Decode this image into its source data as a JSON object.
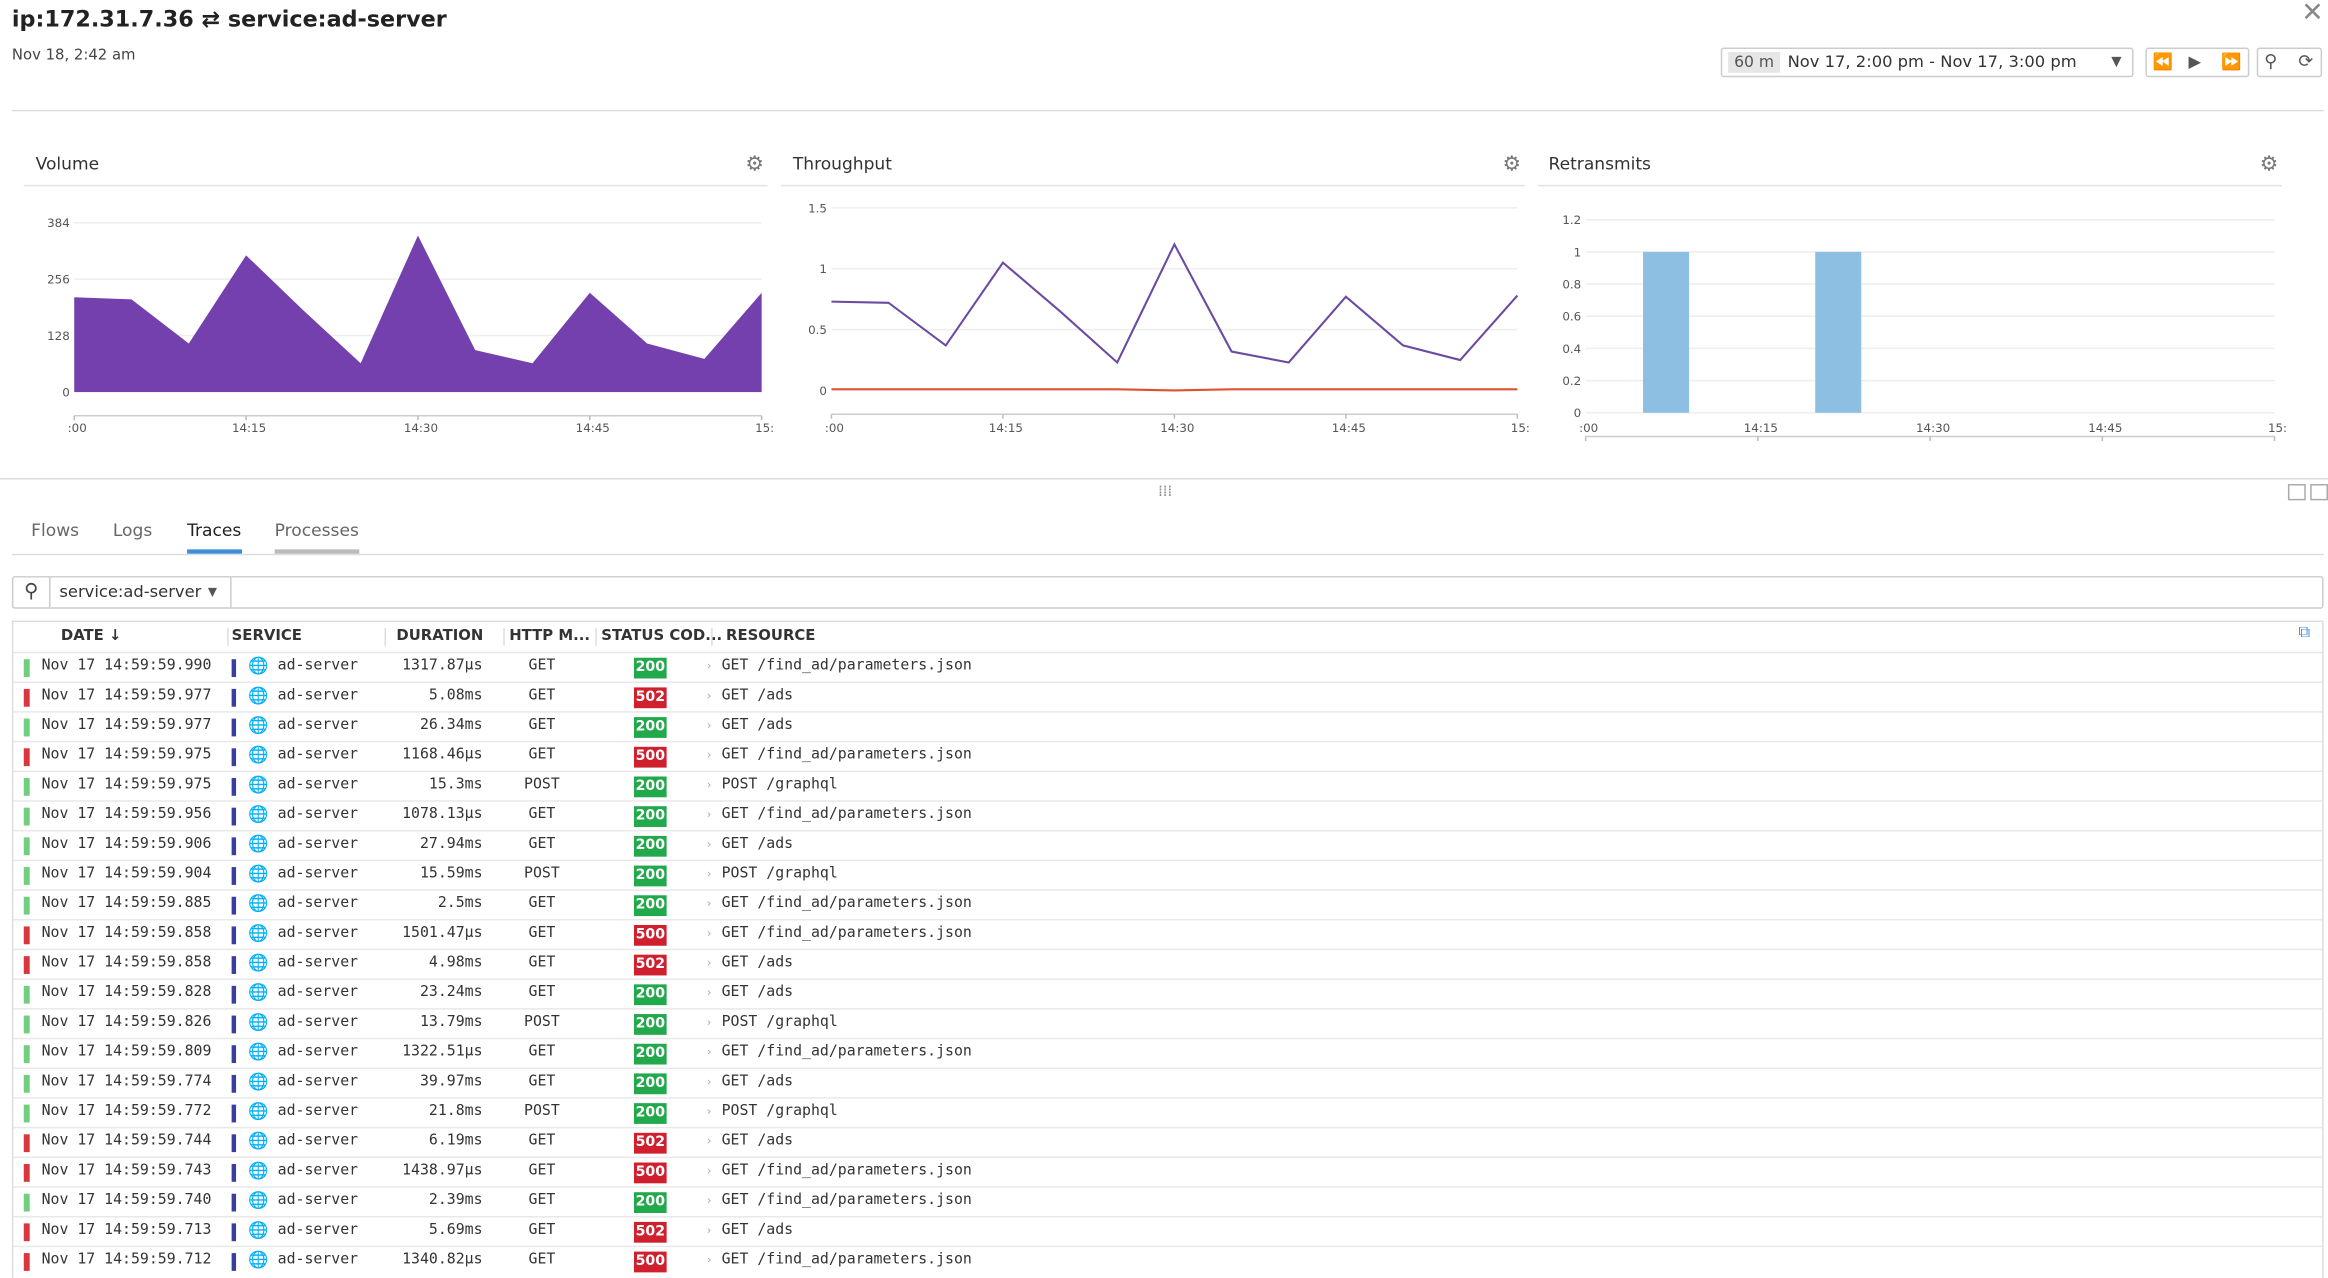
{
  "header": {
    "title": "ip:172.31.7.36 ⇄ service:ad-server",
    "timestamp": "Nov 18, 2:42 am"
  },
  "time_controls": {
    "duration": "60 m",
    "range": "Nov 17, 2:00 pm - Nov 17, 3:00 pm"
  },
  "chart_data": [
    {
      "type": "area",
      "title": "Volume",
      "color": "#7440ad",
      "x": [
        0,
        5,
        10,
        15,
        20,
        25,
        30,
        35,
        40,
        45,
        50,
        55,
        60
      ],
      "values": [
        215,
        210,
        110,
        310,
        185,
        65,
        355,
        95,
        65,
        225,
        110,
        75,
        225
      ],
      "xlim": [
        0,
        60
      ],
      "xticks": [
        {
          "value": 0,
          "label": ":00"
        },
        {
          "value": 15,
          "label": "14:15"
        },
        {
          "value": 30,
          "label": "14:30"
        },
        {
          "value": 45,
          "label": "14:45"
        },
        {
          "value": 60,
          "label": "15:"
        }
      ],
      "ylim": [
        0,
        384
      ],
      "yticks": [
        0,
        128,
        256,
        384
      ],
      "grid": true
    },
    {
      "type": "line",
      "title": "Throughput",
      "x": [
        0,
        5,
        10,
        15,
        20,
        25,
        30,
        35,
        40,
        45,
        50,
        55,
        60
      ],
      "series": [
        {
          "color": "#6b4aa0",
          "values": [
            0.73,
            0.72,
            0.37,
            1.05,
            0.65,
            0.23,
            1.2,
            0.32,
            0.23,
            0.77,
            0.37,
            0.25,
            0.78
          ]
        },
        {
          "color": "#e0502a",
          "values": [
            0.01,
            0.01,
            0.01,
            0.01,
            0.01,
            0.01,
            0.0,
            0.01,
            0.01,
            0.01,
            0.01,
            0.01,
            0.01
          ]
        }
      ],
      "xlim": [
        0,
        60
      ],
      "xticks": [
        {
          "value": 0,
          "label": ":00"
        },
        {
          "value": 15,
          "label": "14:15"
        },
        {
          "value": 30,
          "label": "14:30"
        },
        {
          "value": 45,
          "label": "14:45"
        },
        {
          "value": 60,
          "label": "15:"
        }
      ],
      "ylim": [
        0,
        1.5
      ],
      "yticks": [
        0,
        0.5,
        1,
        1.5
      ],
      "grid": true
    },
    {
      "type": "bar",
      "title": "Retransmits",
      "color": "#8cbfe2",
      "x": [
        7,
        22
      ],
      "values": [
        1,
        1
      ],
      "xlim": [
        0,
        60
      ],
      "xticks": [
        {
          "value": 0,
          "label": ":00"
        },
        {
          "value": 15,
          "label": "14:15"
        },
        {
          "value": 30,
          "label": "14:30"
        },
        {
          "value": 45,
          "label": "14:45"
        },
        {
          "value": 60,
          "label": "15:"
        }
      ],
      "ylim": [
        0,
        1.2
      ],
      "yticks": [
        0,
        0.2,
        0.4,
        0.6,
        0.8,
        1,
        1.2
      ],
      "grid": true
    }
  ],
  "tabs": [
    "Flows",
    "Logs",
    "Traces",
    "Processes"
  ],
  "active_tab": 2,
  "search": {
    "query": "service:ad-server"
  },
  "table": {
    "columns": [
      "DATE ↓",
      "SERVICE",
      "DURATION",
      "HTTP M...",
      "STATUS COD...",
      "RESOURCE"
    ],
    "rows": [
      [
        "Nov 17 14:59:59.990",
        "ad-server",
        "1317.87µs",
        "GET",
        200,
        "GET /find_ad/parameters.json"
      ],
      [
        "Nov 17 14:59:59.977",
        "ad-server",
        "5.08ms",
        "GET",
        502,
        "GET /ads"
      ],
      [
        "Nov 17 14:59:59.977",
        "ad-server",
        "26.34ms",
        "GET",
        200,
        "GET /ads"
      ],
      [
        "Nov 17 14:59:59.975",
        "ad-server",
        "1168.46µs",
        "GET",
        500,
        "GET /find_ad/parameters.json"
      ],
      [
        "Nov 17 14:59:59.975",
        "ad-server",
        "15.3ms",
        "POST",
        200,
        "POST /graphql"
      ],
      [
        "Nov 17 14:59:59.956",
        "ad-server",
        "1078.13µs",
        "GET",
        200,
        "GET /find_ad/parameters.json"
      ],
      [
        "Nov 17 14:59:59.906",
        "ad-server",
        "27.94ms",
        "GET",
        200,
        "GET /ads"
      ],
      [
        "Nov 17 14:59:59.904",
        "ad-server",
        "15.59ms",
        "POST",
        200,
        "POST /graphql"
      ],
      [
        "Nov 17 14:59:59.885",
        "ad-server",
        "2.5ms",
        "GET",
        200,
        "GET /find_ad/parameters.json"
      ],
      [
        "Nov 17 14:59:59.858",
        "ad-server",
        "1501.47µs",
        "GET",
        500,
        "GET /find_ad/parameters.json"
      ],
      [
        "Nov 17 14:59:59.858",
        "ad-server",
        "4.98ms",
        "GET",
        502,
        "GET /ads"
      ],
      [
        "Nov 17 14:59:59.828",
        "ad-server",
        "23.24ms",
        "GET",
        200,
        "GET /ads"
      ],
      [
        "Nov 17 14:59:59.826",
        "ad-server",
        "13.79ms",
        "POST",
        200,
        "POST /graphql"
      ],
      [
        "Nov 17 14:59:59.809",
        "ad-server",
        "1322.51µs",
        "GET",
        200,
        "GET /find_ad/parameters.json"
      ],
      [
        "Nov 17 14:59:59.774",
        "ad-server",
        "39.97ms",
        "GET",
        200,
        "GET /ads"
      ],
      [
        "Nov 17 14:59:59.772",
        "ad-server",
        "21.8ms",
        "POST",
        200,
        "POST /graphql"
      ],
      [
        "Nov 17 14:59:59.744",
        "ad-server",
        "6.19ms",
        "GET",
        502,
        "GET /ads"
      ],
      [
        "Nov 17 14:59:59.743",
        "ad-server",
        "1438.97µs",
        "GET",
        500,
        "GET /find_ad/parameters.json"
      ],
      [
        "Nov 17 14:59:59.740",
        "ad-server",
        "2.39ms",
        "GET",
        200,
        "GET /find_ad/parameters.json"
      ],
      [
        "Nov 17 14:59:59.713",
        "ad-server",
        "5.69ms",
        "GET",
        502,
        "GET /ads"
      ],
      [
        "Nov 17 14:59:59.712",
        "ad-server",
        "1340.82µs",
        "GET",
        500,
        "GET /find_ad/parameters.json"
      ]
    ]
  }
}
